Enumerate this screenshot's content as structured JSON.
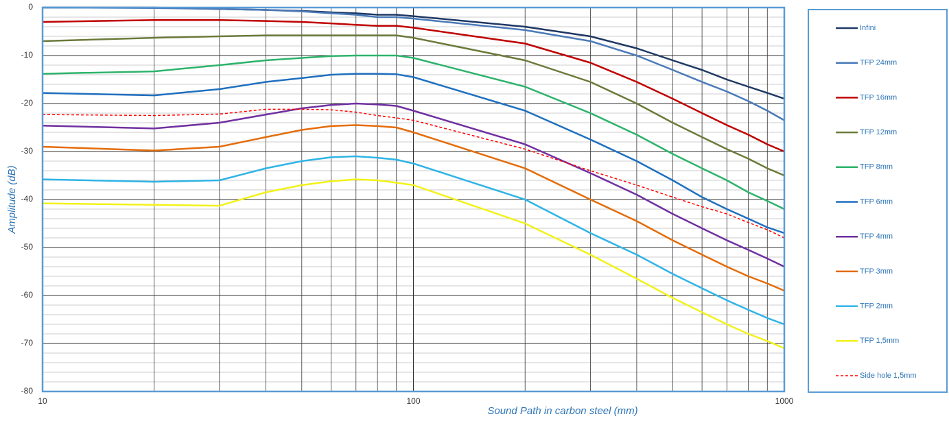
{
  "chart_data": {
    "type": "line",
    "x_label": "Sound Path in carbon steel (mm)",
    "y_label": "Amplitude (dB)",
    "x_log": true,
    "grid": true,
    "legend_position": "right",
    "xlim": [
      10,
      1000
    ],
    "xticks": [
      10,
      100,
      1000
    ],
    "ylim": [
      -80,
      0
    ],
    "yticks": [
      0,
      -10,
      -20,
      -30,
      -40,
      -50,
      -60,
      -70,
      -80
    ],
    "x": [
      10,
      20,
      30,
      40,
      50,
      60,
      70,
      80,
      90,
      100,
      200,
      300,
      400,
      500,
      600,
      700,
      800,
      900,
      1000
    ],
    "series": [
      {
        "name": "Infini",
        "color": "#1f3864",
        "values": [
          0,
          0,
          -0.3,
          -0.5,
          -0.7,
          -1,
          -1.2,
          -1.5,
          -1.5,
          -1.8,
          -4,
          -6,
          -8.5,
          -11,
          -13,
          -15,
          -16.5,
          -17.8,
          -19
        ]
      },
      {
        "name": "TFP 24mm",
        "color": "#4a7ab8",
        "values": [
          0,
          -0.1,
          -0.3,
          -0.5,
          -0.8,
          -1.2,
          -1.5,
          -2,
          -2,
          -2.3,
          -4.7,
          -7,
          -10,
          -13,
          -15.5,
          -17.5,
          -19.5,
          -21.5,
          -23.5
        ]
      },
      {
        "name": "TFP 16mm",
        "color": "#c00000",
        "values": [
          -3,
          -2.6,
          -2.6,
          -2.8,
          -3,
          -3.3,
          -3.6,
          -3.8,
          -3.8,
          -4.2,
          -7.5,
          -11.5,
          -15.5,
          -19,
          -22,
          -24.5,
          -26.5,
          -28.5,
          -30
        ]
      },
      {
        "name": "TFP 12mm",
        "color": "#6b7a3a",
        "values": [
          -7,
          -6.3,
          -6,
          -5.8,
          -5.8,
          -5.8,
          -5.8,
          -5.8,
          -5.8,
          -6.3,
          -11,
          -15.5,
          -20,
          -24,
          -27,
          -29.5,
          -31.5,
          -33.5,
          -35
        ]
      },
      {
        "name": "TFP 8mm",
        "color": "#2db36b",
        "values": [
          -13.8,
          -13.3,
          -12,
          -11,
          -10.5,
          -10.1,
          -10,
          -10,
          -10,
          -10.5,
          -16.5,
          -22,
          -26.5,
          -30.5,
          -33.5,
          -36,
          -38.5,
          -40.3,
          -42
        ]
      },
      {
        "name": "TFP 6mm",
        "color": "#1f6fbf",
        "values": [
          -17.8,
          -18.3,
          -17,
          -15.5,
          -14.7,
          -14,
          -13.8,
          -13.8,
          -13.9,
          -14.5,
          -21.5,
          -27.5,
          -32,
          -36,
          -39.5,
          -42,
          -44,
          -45.8,
          -47
        ]
      },
      {
        "name": "TFP 4mm",
        "color": "#7030a0",
        "values": [
          -24.6,
          -25.2,
          -24,
          -22.3,
          -21,
          -20.3,
          -20,
          -20.2,
          -20.5,
          -21.5,
          -28.5,
          -34.5,
          -39,
          -43,
          -46,
          -48.5,
          -50.5,
          -52.3,
          -54
        ]
      },
      {
        "name": "TFP 3mm",
        "color": "#e46c0a",
        "values": [
          -29,
          -29.8,
          -29,
          -27,
          -25.5,
          -24.7,
          -24.5,
          -24.7,
          -25,
          -26,
          -33.5,
          -40,
          -44.5,
          -48.5,
          -51.5,
          -54,
          -56,
          -57.5,
          -59
        ]
      },
      {
        "name": "TFP 2mm",
        "color": "#2fb4e6",
        "values": [
          -35.8,
          -36.3,
          -36,
          -33.5,
          -32,
          -31.2,
          -31,
          -31.3,
          -31.7,
          -32.5,
          -40,
          -47,
          -51.5,
          -55.5,
          -58.5,
          -61,
          -63,
          -64.7,
          -66
        ]
      },
      {
        "name": "TFP 1,5mm",
        "color": "#f2f21a",
        "values": [
          -40.8,
          -41.1,
          -41.3,
          -38.5,
          -37,
          -36.2,
          -35.8,
          -36,
          -36.5,
          -37,
          -45,
          -51.5,
          -56.5,
          -60.5,
          -63.5,
          -66,
          -68,
          -69.5,
          -71
        ]
      },
      {
        "name": "Side hole 1,5mm",
        "color": "#ff0000",
        "dashed": true,
        "values": [
          -22.3,
          -22.5,
          -22.2,
          -21.2,
          -21.2,
          -21.3,
          -21.8,
          -22.5,
          -23,
          -23.5,
          -29.5,
          -34,
          -37,
          -39.5,
          -41.5,
          -43,
          -44.8,
          -46.3,
          -48
        ]
      }
    ]
  }
}
